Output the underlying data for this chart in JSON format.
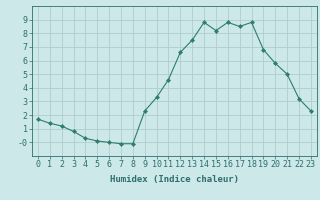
{
  "x": [
    0,
    1,
    2,
    3,
    4,
    5,
    6,
    7,
    8,
    9,
    10,
    11,
    12,
    13,
    14,
    15,
    16,
    17,
    18,
    19,
    20,
    21,
    22,
    23
  ],
  "y": [
    1.7,
    1.4,
    1.2,
    0.8,
    0.3,
    0.1,
    0.0,
    -0.1,
    -0.1,
    2.3,
    3.3,
    4.6,
    6.6,
    7.5,
    8.8,
    8.2,
    8.8,
    8.5,
    8.8,
    6.8,
    5.8,
    5.0,
    3.2,
    2.3
  ],
  "line_color": "#2e7d6e",
  "marker": "D",
  "marker_size": 2,
  "bg_color": "#cce8e8",
  "grid_color": "#b0cccc",
  "xlabel": "Humidex (Indice chaleur)",
  "xlim": [
    -0.5,
    23.5
  ],
  "ylim": [
    -1.0,
    10.0
  ],
  "xticks": [
    0,
    1,
    2,
    3,
    4,
    5,
    6,
    7,
    8,
    9,
    10,
    11,
    12,
    13,
    14,
    15,
    16,
    17,
    18,
    19,
    20,
    21,
    22,
    23
  ],
  "yticks": [
    0,
    1,
    2,
    3,
    4,
    5,
    6,
    7,
    8,
    9
  ],
  "ytick_labels": [
    "-0",
    "1",
    "2",
    "3",
    "4",
    "5",
    "6",
    "7",
    "8",
    "9"
  ],
  "tick_color": "#2e6e6e",
  "label_fontsize": 6.5,
  "tick_fontsize": 6.0
}
